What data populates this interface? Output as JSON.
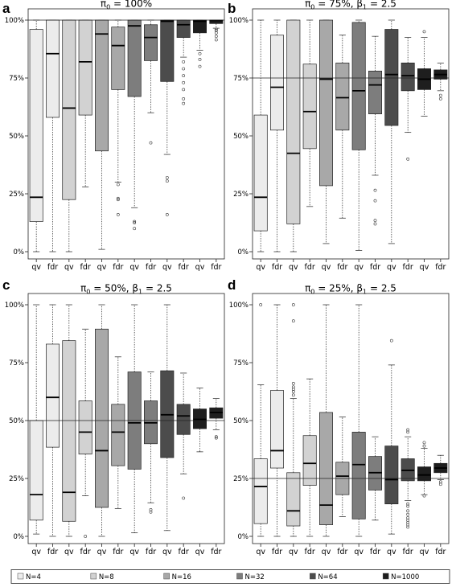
{
  "legend": {
    "items": [
      {
        "label": "N=4",
        "color": "#ececec"
      },
      {
        "label": "N=8",
        "color": "#d2d2d2"
      },
      {
        "label": "N=16",
        "color": "#a8a8a8"
      },
      {
        "label": "N=32",
        "color": "#7d7d7d"
      },
      {
        "label": "N=64",
        "color": "#4c4c4c"
      },
      {
        "label": "N=1000",
        "color": "#1e1e1e"
      }
    ]
  },
  "chart_data": [
    {
      "type": "box",
      "panel": "a",
      "title_parts": [
        "π",
        "0",
        " = 100%"
      ],
      "ylim": [
        0,
        100
      ],
      "yticks": [
        "0%",
        "25%",
        "50%",
        "75%",
        "100%"
      ],
      "reference_line": 100,
      "categories": [
        "qv",
        "fdr",
        "qv",
        "fdr",
        "qv",
        "fdr",
        "qv",
        "fdr",
        "qv",
        "fdr",
        "qv",
        "fdr"
      ],
      "groups": [
        "N=4",
        "N=4",
        "N=8",
        "N=8",
        "N=16",
        "N=16",
        "N=32",
        "N=32",
        "N=64",
        "N=64",
        "N=1000",
        "N=1000"
      ],
      "boxes": [
        {
          "low": 0,
          "q1": 13,
          "median": 23.5,
          "q3": 96,
          "high": 100,
          "outliers": []
        },
        {
          "low": 0,
          "q1": 58,
          "median": 85.5,
          "q3": 100,
          "high": 100,
          "outliers": []
        },
        {
          "low": 0,
          "q1": 22.5,
          "median": 62,
          "q3": 100,
          "high": 100,
          "outliers": []
        },
        {
          "low": 28,
          "q1": 59,
          "median": 82,
          "q3": 100,
          "high": 100,
          "outliers": []
        },
        {
          "low": 1,
          "q1": 43.5,
          "median": 94,
          "q3": 100,
          "high": 100,
          "outliers": []
        },
        {
          "low": 30,
          "q1": 70,
          "median": 89,
          "q3": 97,
          "high": 100,
          "outliers": [
            29,
            23,
            22.5,
            16
          ]
        },
        {
          "low": 19,
          "q1": 67,
          "median": 97.5,
          "q3": 100,
          "high": 100,
          "outliers": [
            13,
            12.5,
            10
          ]
        },
        {
          "low": 60,
          "q1": 82.5,
          "median": 92.5,
          "q3": 98,
          "high": 100,
          "outliers": [
            47
          ]
        },
        {
          "low": 42,
          "q1": 73.5,
          "median": 99.5,
          "q3": 100,
          "high": 100,
          "outliers": [
            32,
            30.5,
            16
          ]
        },
        {
          "low": 84,
          "q1": 92.5,
          "median": 98,
          "q3": 100,
          "high": 100,
          "outliers": [
            82,
            79,
            76,
            73,
            70,
            66,
            64
          ]
        },
        {
          "low": 87,
          "q1": 94.5,
          "median": 99.5,
          "q3": 100,
          "high": 100,
          "outliers": [
            85.5,
            83,
            80
          ]
        },
        {
          "low": 96.5,
          "q1": 98.5,
          "median": 99.8,
          "q3": 100,
          "high": 100,
          "outliers": [
            96,
            95.5,
            94.5,
            93,
            91.5
          ]
        }
      ]
    },
    {
      "type": "box",
      "panel": "b",
      "title_parts": [
        "π",
        "0",
        " = 75%, β",
        "1",
        " = 2.5"
      ],
      "ylim": [
        0,
        100
      ],
      "yticks": [
        "0%",
        "25%",
        "50%",
        "75%",
        "100%"
      ],
      "reference_line": 75,
      "categories": [
        "qv",
        "fdr",
        "qv",
        "fdr",
        "qv",
        "fdr",
        "qv",
        "fdr",
        "qv",
        "fdr",
        "qv",
        "fdr"
      ],
      "groups": [
        "N=4",
        "N=4",
        "N=8",
        "N=8",
        "N=16",
        "N=16",
        "N=32",
        "N=32",
        "N=64",
        "N=64",
        "N=1000",
        "N=1000"
      ],
      "boxes": [
        {
          "low": 0,
          "q1": 9,
          "median": 23.5,
          "q3": 59,
          "high": 100,
          "outliers": []
        },
        {
          "low": 0,
          "q1": 52.5,
          "median": 71,
          "q3": 93.5,
          "high": 100,
          "outliers": []
        },
        {
          "low": 0,
          "q1": 12,
          "median": 42.5,
          "q3": 100,
          "high": 100,
          "outliers": []
        },
        {
          "low": 19.5,
          "q1": 44.5,
          "median": 60.5,
          "q3": 81,
          "high": 100,
          "outliers": []
        },
        {
          "low": 3.5,
          "q1": 28.5,
          "median": 74.5,
          "q3": 100,
          "high": 100,
          "outliers": []
        },
        {
          "low": 14.5,
          "q1": 52.5,
          "median": 66.5,
          "q3": 81.5,
          "high": 93.5,
          "outliers": []
        },
        {
          "low": 0.5,
          "q1": 44,
          "median": 69.5,
          "q3": 99,
          "high": 100,
          "outliers": []
        },
        {
          "low": 33,
          "q1": 59.5,
          "median": 72,
          "q3": 78,
          "high": 93,
          "outliers": [
            26.5,
            22,
            13.5,
            12
          ]
        },
        {
          "low": 3.5,
          "q1": 54.5,
          "median": 76.5,
          "q3": 96,
          "high": 100,
          "outliers": []
        },
        {
          "low": 51.5,
          "q1": 69.5,
          "median": 76,
          "q3": 81.5,
          "high": 92.5,
          "outliers": [
            40
          ]
        },
        {
          "low": 58.5,
          "q1": 70,
          "median": 74.5,
          "q3": 79,
          "high": 92.5,
          "outliers": [
            95
          ]
        },
        {
          "low": 69.5,
          "q1": 74.5,
          "median": 76.5,
          "q3": 78.5,
          "high": 81.5,
          "outliers": [
            67.5,
            66
          ]
        }
      ]
    },
    {
      "type": "box",
      "panel": "c",
      "title_parts": [
        "π",
        "0",
        " = 50%, β",
        "1",
        " = 2.5"
      ],
      "ylim": [
        0,
        100
      ],
      "yticks": [
        "0%",
        "25%",
        "50%",
        "75%",
        "100%"
      ],
      "reference_line": 50,
      "categories": [
        "qv",
        "fdr",
        "qv",
        "fdr",
        "qv",
        "fdr",
        "qv",
        "fdr",
        "qv",
        "fdr",
        "qv",
        "fdr"
      ],
      "groups": [
        "N=4",
        "N=4",
        "N=8",
        "N=8",
        "N=16",
        "N=16",
        "N=32",
        "N=32",
        "N=64",
        "N=64",
        "N=1000",
        "N=1000"
      ],
      "boxes": [
        {
          "low": 1,
          "q1": 7,
          "median": 18,
          "q3": 50,
          "high": 100,
          "outliers": []
        },
        {
          "low": 0,
          "q1": 38.5,
          "median": 60,
          "q3": 83,
          "high": 100,
          "outliers": []
        },
        {
          "low": 0,
          "q1": 6.5,
          "median": 19,
          "q3": 84.5,
          "high": 100,
          "outliers": []
        },
        {
          "low": 17.5,
          "q1": 35.5,
          "median": 45,
          "q3": 58.5,
          "high": 89.5,
          "outliers": [
            0
          ]
        },
        {
          "low": 0,
          "q1": 12.5,
          "median": 37,
          "q3": 89.5,
          "high": 100,
          "outliers": []
        },
        {
          "low": 12,
          "q1": 30.5,
          "median": 45,
          "q3": 57,
          "high": 77.5,
          "outliers": []
        },
        {
          "low": 1.5,
          "q1": 29,
          "median": 49,
          "q3": 71,
          "high": 100,
          "outliers": []
        },
        {
          "low": 14.5,
          "q1": 40,
          "median": 49,
          "q3": 58.5,
          "high": 71,
          "outliers": [
            11.5,
            10.5
          ]
        },
        {
          "low": 2.5,
          "q1": 34,
          "median": 52.5,
          "q3": 71.5,
          "high": 100,
          "outliers": []
        },
        {
          "low": 27,
          "q1": 44,
          "median": 52,
          "q3": 57,
          "high": 70.5,
          "outliers": [
            16.5
          ]
        },
        {
          "low": 36.5,
          "q1": 46.5,
          "median": 50.5,
          "q3": 55,
          "high": 64,
          "outliers": []
        },
        {
          "low": 46,
          "q1": 51,
          "median": 53.5,
          "q3": 55.5,
          "high": 59.5,
          "outliers": [
            43,
            42.5
          ]
        }
      ]
    },
    {
      "type": "box",
      "panel": "d",
      "title_parts": [
        "π",
        "0",
        " = 25%, β",
        "1",
        " = 2.5"
      ],
      "ylim": [
        0,
        100
      ],
      "yticks": [
        "0%",
        "25%",
        "50%",
        "75%",
        "100%"
      ],
      "reference_line": 25,
      "categories": [
        "qv",
        "fdr",
        "qv",
        "fdr",
        "qv",
        "fdr",
        "qv",
        "fdr",
        "qv",
        "fdr",
        "qv",
        "fdr"
      ],
      "groups": [
        "N=4",
        "N=4",
        "N=8",
        "N=8",
        "N=16",
        "N=16",
        "N=32",
        "N=32",
        "N=64",
        "N=64",
        "N=1000",
        "N=1000"
      ],
      "boxes": [
        {
          "low": 0,
          "q1": 5.5,
          "median": 21.5,
          "q3": 33.5,
          "high": 65.5,
          "outliers": [
            100
          ]
        },
        {
          "low": 0,
          "q1": 29.5,
          "median": 37,
          "q3": 63,
          "high": 100,
          "outliers": []
        },
        {
          "low": 0,
          "q1": 4.5,
          "median": 11,
          "q3": 27.5,
          "high": 59.5,
          "outliers": [
            100,
            93,
            66,
            64.5,
            63.5,
            62.5,
            61
          ]
        },
        {
          "low": 0,
          "q1": 22,
          "median": 31.5,
          "q3": 43.5,
          "high": 68,
          "outliers": []
        },
        {
          "low": 0,
          "q1": 5,
          "median": 13.5,
          "q3": 53.5,
          "high": 100,
          "outliers": []
        },
        {
          "low": 8.5,
          "q1": 18,
          "median": 26,
          "q3": 32,
          "high": 51.5,
          "outliers": []
        },
        {
          "low": 0,
          "q1": 7.5,
          "median": 31,
          "q3": 45,
          "high": 100,
          "outliers": []
        },
        {
          "low": 7,
          "q1": 20,
          "median": 27.5,
          "q3": 34.5,
          "high": 43,
          "outliers": []
        },
        {
          "low": 1,
          "q1": 14,
          "median": 24.5,
          "q3": 39,
          "high": 74,
          "outliers": [
            84.5
          ]
        },
        {
          "low": 15.5,
          "q1": 24,
          "median": 28.5,
          "q3": 33.5,
          "high": 43,
          "outliers": [
            46,
            45,
            14,
            13,
            11,
            9.5,
            8,
            7,
            6,
            5,
            4
          ]
        },
        {
          "low": 18,
          "q1": 24,
          "median": 26.5,
          "q3": 30,
          "high": 38,
          "outliers": [
            40.5,
            39,
            17.5
          ]
        },
        {
          "low": 24.5,
          "q1": 27.5,
          "median": 29.5,
          "q3": 31.5,
          "high": 35,
          "outliers": [
            23.5,
            22.5
          ]
        }
      ]
    }
  ]
}
